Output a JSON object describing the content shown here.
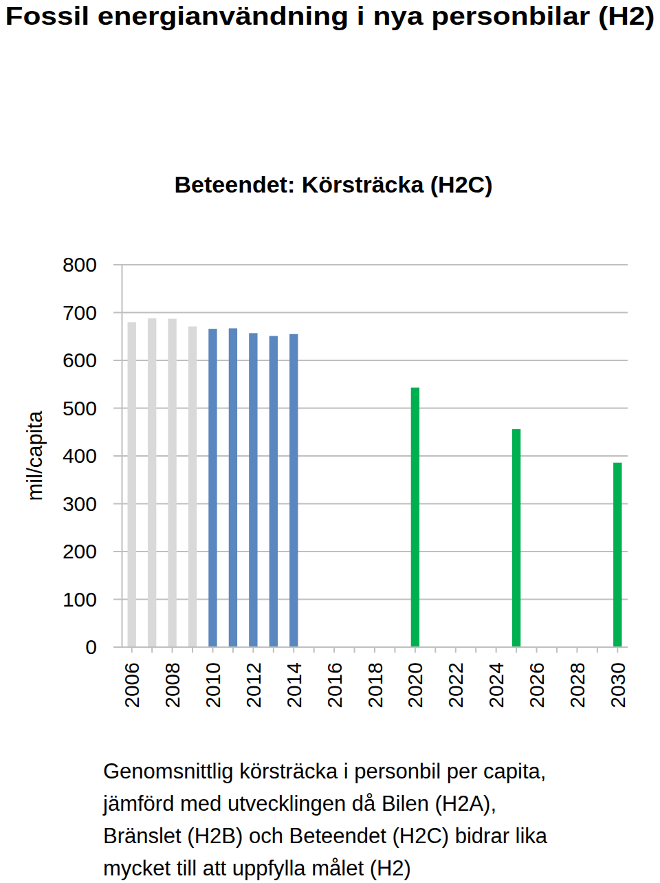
{
  "chart_data": {
    "type": "bar",
    "title": "Fossil energianvändning i nya personbilar (H2)",
    "subtitle": "Beteendet: Körsträcka (H2C)",
    "y_label": "mil/capita",
    "categories": [
      "2006",
      null,
      "2008",
      null,
      "2010",
      null,
      "2012",
      null,
      "2014",
      null,
      "2016",
      null,
      "2018",
      null,
      "2020",
      null,
      "2022",
      null,
      "2024",
      null,
      "2026",
      null,
      "2028",
      null,
      "2030"
    ],
    "values": [
      680,
      688,
      687,
      671,
      666,
      667,
      657,
      651,
      655,
      null,
      null,
      null,
      null,
      null,
      543,
      null,
      null,
      null,
      null,
      456,
      null,
      null,
      null,
      null,
      386
    ],
    "colors": [
      "#d9d9d9",
      "#d9d9d9",
      "#d9d9d9",
      "#d9d9d9",
      "#5b87c0",
      "#5b87c0",
      "#5b87c0",
      "#5b87c0",
      "#5b87c0",
      null,
      null,
      null,
      null,
      null,
      "#00b050",
      null,
      null,
      null,
      null,
      "#00b050",
      null,
      null,
      null,
      null,
      "#00b050"
    ],
    "ylim": [
      0,
      800
    ],
    "yticks": [
      0,
      100,
      200,
      300,
      400,
      500,
      600,
      700,
      800
    ],
    "grid": true,
    "annotations": [
      "Genomsnittlig körsträcka i personbil per capita,",
      "jämförd med utvecklingen då Bilen (H2A),",
      "Bränslet (H2B) och Beteendet (H2C) bidrar lika",
      "mycket till att uppfylla målet (H2)"
    ]
  }
}
